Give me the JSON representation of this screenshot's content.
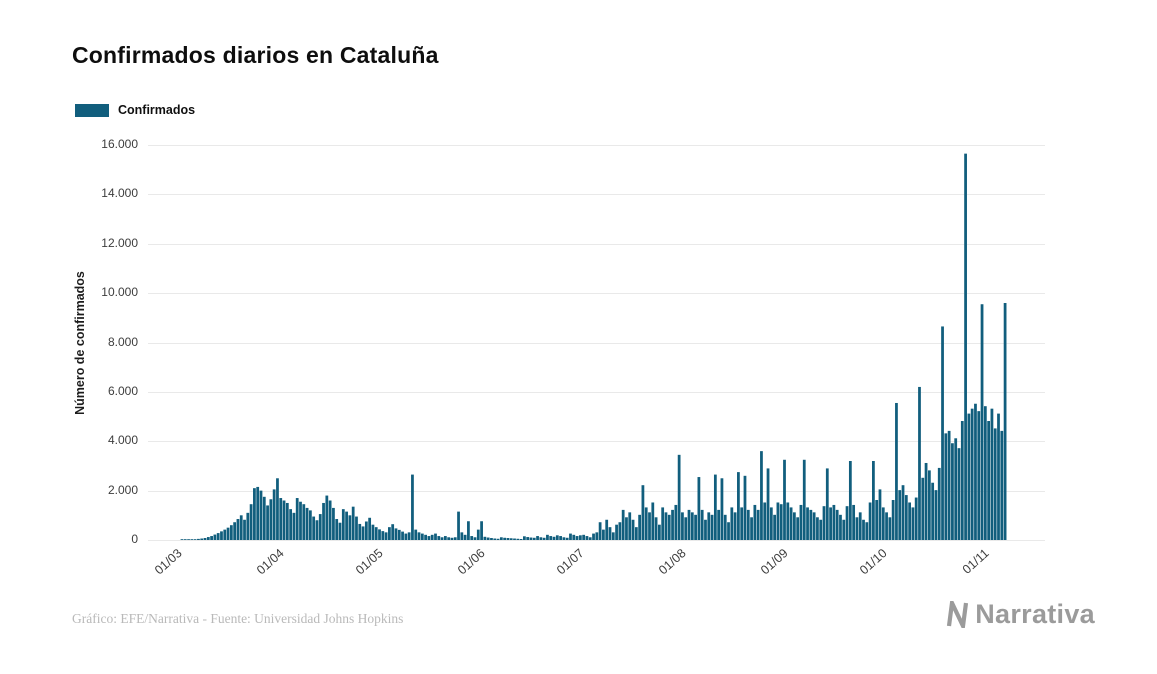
{
  "header": {
    "title": "Confirmados diarios en Cataluña"
  },
  "legend": {
    "label": "Confirmados"
  },
  "footer": {
    "credit": "Gráfico: EFE/Narrativa - Fuente: Universidad Johns Hopkins",
    "brand": "Narrativa"
  },
  "colors": {
    "bar": "#115E7D",
    "grid": "#E9E9E9",
    "axis_text": "#3D3D3D",
    "title_text": "#0E0E0E",
    "credit_text": "#B9B9B9",
    "brand_text": "#9B9B9B",
    "background": "#FFFFFF"
  },
  "chart_data": {
    "type": "bar",
    "title": "Confirmados diarios en Cataluña",
    "xlabel": "",
    "ylabel": "Número de confirmados",
    "ylim": [
      0,
      16000
    ],
    "grid": true,
    "legend_position": "top-left",
    "bar_color": "#115E7D",
    "yticks": [
      {
        "value": 0,
        "label": "0"
      },
      {
        "value": 2000,
        "label": "2.000"
      },
      {
        "value": 4000,
        "label": "4.000"
      },
      {
        "value": 6000,
        "label": "6.000"
      },
      {
        "value": 8000,
        "label": "8.000"
      },
      {
        "value": 10000,
        "label": "10.000"
      },
      {
        "value": 12000,
        "label": "12.000"
      },
      {
        "value": 14000,
        "label": "14.000"
      },
      {
        "value": 16000,
        "label": "16.000"
      }
    ],
    "xticks": [
      {
        "index": 0,
        "label": "01/03"
      },
      {
        "index": 31,
        "label": "01/04"
      },
      {
        "index": 61,
        "label": "01/05"
      },
      {
        "index": 92,
        "label": "01/06"
      },
      {
        "index": 122,
        "label": "01/07"
      },
      {
        "index": 153,
        "label": "01/08"
      },
      {
        "index": 184,
        "label": "01/09"
      },
      {
        "index": 214,
        "label": "01/10"
      },
      {
        "index": 245,
        "label": "01/11"
      }
    ],
    "series": [
      {
        "name": "Confirmados",
        "values": [
          0,
          0,
          5,
          10,
          15,
          20,
          30,
          45,
          60,
          80,
          120,
          160,
          220,
          280,
          350,
          420,
          500,
          600,
          720,
          850,
          1000,
          820,
          1100,
          1450,
          2100,
          2150,
          2000,
          1750,
          1400,
          1650,
          2050,
          2500,
          1700,
          1600,
          1500,
          1250,
          1100,
          1700,
          1550,
          1450,
          1300,
          1200,
          950,
          800,
          1050,
          1500,
          1800,
          1600,
          1300,
          850,
          700,
          1250,
          1150,
          1000,
          1350,
          950,
          650,
          550,
          750,
          900,
          620,
          520,
          430,
          360,
          310,
          520,
          640,
          470,
          410,
          340,
          260,
          310,
          2650,
          420,
          310,
          260,
          210,
          160,
          210,
          260,
          160,
          110,
          160,
          110,
          90,
          110,
          1150,
          310,
          210,
          760,
          160,
          110,
          420,
          760,
          130,
          100,
          80,
          60,
          50,
          110,
          90,
          80,
          70,
          60,
          50,
          40,
          150,
          120,
          100,
          90,
          160,
          110,
          90,
          210,
          160,
          130,
          190,
          160,
          110,
          90,
          260,
          210,
          160,
          190,
          210,
          160,
          110,
          260,
          310,
          720,
          420,
          820,
          520,
          310,
          620,
          720,
          1220,
          920,
          1120,
          820,
          520,
          1020,
          2220,
          1320,
          1120,
          1520,
          920,
          620,
          1320,
          1120,
          1020,
          1220,
          1420,
          3450,
          1120,
          920,
          1220,
          1120,
          1020,
          2550,
          1220,
          820,
          1120,
          1020,
          2650,
          1220,
          2500,
          1020,
          720,
          1320,
          1120,
          2750,
          1320,
          2600,
          1220,
          920,
          1420,
          1220,
          3600,
          1520,
          2900,
          1320,
          1020,
          1520,
          1450,
          3250,
          1520,
          1320,
          1120,
          920,
          1420,
          3250,
          1320,
          1220,
          1120,
          920,
          820,
          1370,
          2900,
          1320,
          1420,
          1220,
          1020,
          820,
          1370,
          3200,
          1420,
          920,
          1120,
          820,
          720,
          1520,
          3200,
          1620,
          2050,
          1320,
          1120,
          920,
          1620,
          5550,
          2020,
          2220,
          1820,
          1520,
          1320,
          1720,
          6200,
          2520,
          3120,
          2820,
          2320,
          2020,
          2920,
          8650,
          4320,
          4420,
          3920,
          4120,
          3720,
          4820,
          15650,
          5120,
          5320,
          5520,
          5220,
          9550,
          5420,
          4820,
          5320,
          4520,
          5120,
          4420,
          9600
        ]
      }
    ]
  }
}
